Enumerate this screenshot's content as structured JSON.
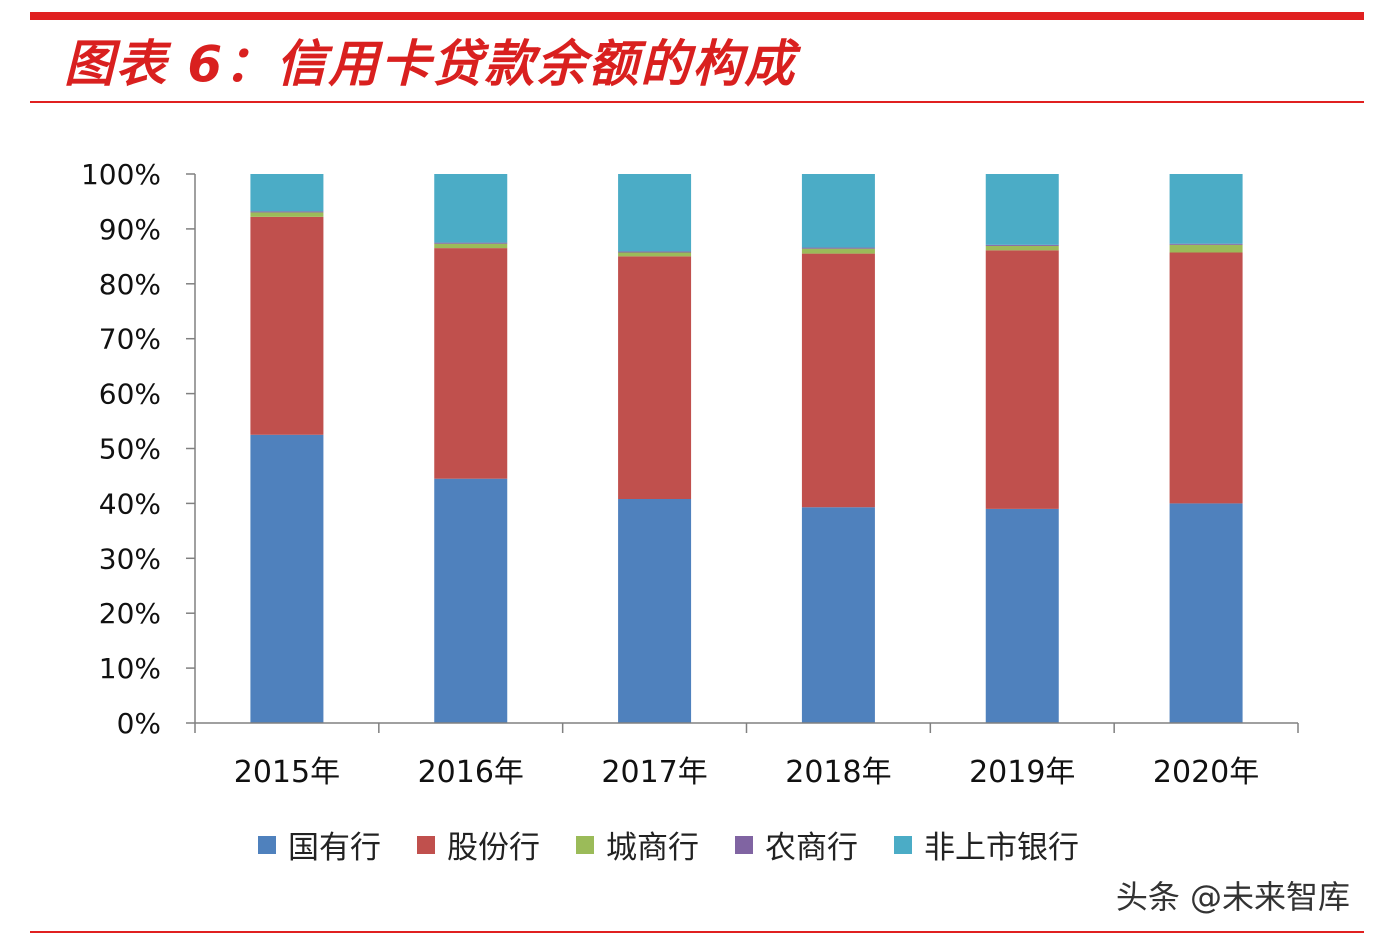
{
  "header": {
    "title": "图表 6：信用卡贷款余额的构成"
  },
  "watermark": "头条 @未来智库",
  "chart_data": {
    "type": "bar",
    "stacked": true,
    "categories": [
      "2015年",
      "2016年",
      "2017年",
      "2018年",
      "2019年",
      "2020年"
    ],
    "y_ticks": [
      "0%",
      "10%",
      "20%",
      "30%",
      "40%",
      "50%",
      "60%",
      "70%",
      "80%",
      "90%",
      "100%"
    ],
    "ylim": [
      0,
      100
    ],
    "series": [
      {
        "name": "国有行",
        "color": "#4f81bd",
        "values": [
          52.5,
          44.5,
          40.8,
          39.3,
          39.0,
          40.0
        ]
      },
      {
        "name": "股份行",
        "color": "#c0504d",
        "values": [
          39.7,
          42.0,
          44.2,
          46.2,
          47.1,
          45.7
        ]
      },
      {
        "name": "城商行",
        "color": "#9bbb59",
        "values": [
          0.8,
          0.8,
          0.7,
          0.9,
          0.8,
          1.4
        ]
      },
      {
        "name": "农商行",
        "color": "#8064a2",
        "values": [
          0.2,
          0.2,
          0.2,
          0.2,
          0.2,
          0.2
        ]
      },
      {
        "name": "非上市银行",
        "color": "#4bacc6",
        "values": [
          6.8,
          12.5,
          14.1,
          13.4,
          12.9,
          12.7
        ]
      }
    ],
    "legend_position": "bottom",
    "grid": false
  }
}
